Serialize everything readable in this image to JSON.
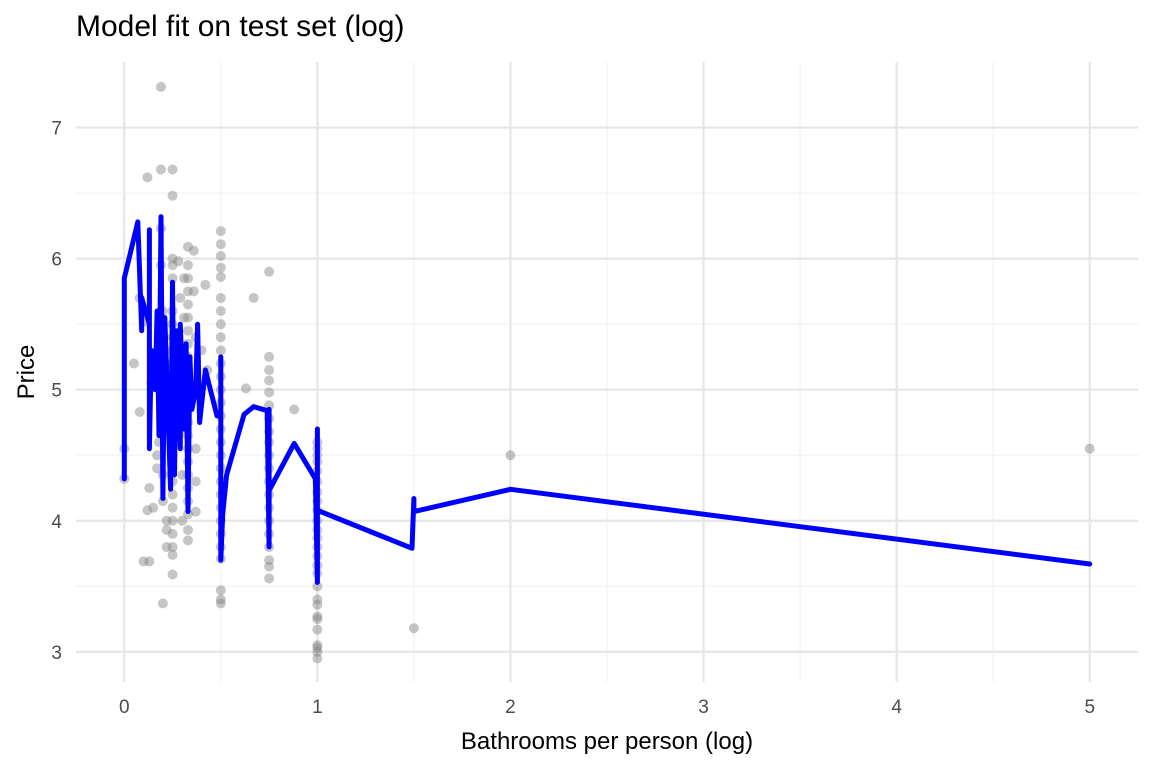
{
  "chart_data": {
    "type": "scatter",
    "title": "Model fit on test set (log)",
    "xlabel": "Bathrooms per person (log)",
    "ylabel": "Price",
    "xlim": [
      -0.25,
      5.25
    ],
    "ylim": [
      2.77,
      7.5
    ],
    "x_ticks": [
      0,
      1,
      2,
      3,
      4,
      5
    ],
    "y_ticks": [
      3,
      4,
      5,
      6,
      7
    ],
    "grid": true,
    "colors": {
      "points": "#808080",
      "fit_line": "#0000ff",
      "grid": "#e6e6e6"
    },
    "points": [
      [
        0,
        4.55
      ],
      [
        0,
        4.32
      ],
      [
        0.05,
        5.2
      ],
      [
        0.08,
        5.7
      ],
      [
        0.08,
        4.83
      ],
      [
        0.1,
        3.69
      ],
      [
        0.11,
        5.52
      ],
      [
        0.12,
        6.62
      ],
      [
        0.12,
        4.08
      ],
      [
        0.13,
        3.69
      ],
      [
        0.13,
        4.25
      ],
      [
        0.14,
        5.05
      ],
      [
        0.15,
        4.1
      ],
      [
        0.17,
        4.5
      ],
      [
        0.17,
        4.4
      ],
      [
        0.18,
        4.6
      ],
      [
        0.18,
        5.25
      ],
      [
        0.19,
        7.31
      ],
      [
        0.19,
        6.68
      ],
      [
        0.19,
        6.23
      ],
      [
        0.19,
        5.95
      ],
      [
        0.2,
        5.6
      ],
      [
        0.2,
        5.4
      ],
      [
        0.2,
        5.1
      ],
      [
        0.2,
        4.85
      ],
      [
        0.2,
        4.35
      ],
      [
        0.2,
        4.15
      ],
      [
        0.2,
        3.37
      ],
      [
        0.22,
        5.2
      ],
      [
        0.22,
        4.0
      ],
      [
        0.22,
        3.93
      ],
      [
        0.22,
        3.8
      ],
      [
        0.25,
        6.68
      ],
      [
        0.25,
        6.48
      ],
      [
        0.25,
        6.0
      ],
      [
        0.25,
        5.95
      ],
      [
        0.25,
        5.85
      ],
      [
        0.25,
        5.6
      ],
      [
        0.25,
        5.5
      ],
      [
        0.25,
        5.4
      ],
      [
        0.25,
        5.3
      ],
      [
        0.25,
        5.2
      ],
      [
        0.25,
        5.1
      ],
      [
        0.25,
        5.0
      ],
      [
        0.25,
        4.9
      ],
      [
        0.25,
        4.8
      ],
      [
        0.25,
        4.7
      ],
      [
        0.25,
        4.6
      ],
      [
        0.25,
        4.5
      ],
      [
        0.25,
        4.4
      ],
      [
        0.25,
        4.3
      ],
      [
        0.25,
        4.2
      ],
      [
        0.25,
        4.1
      ],
      [
        0.25,
        4.0
      ],
      [
        0.25,
        3.9
      ],
      [
        0.25,
        3.8
      ],
      [
        0.25,
        3.74
      ],
      [
        0.25,
        3.59
      ],
      [
        0.28,
        5.98
      ],
      [
        0.29,
        5.7
      ],
      [
        0.29,
        5.3
      ],
      [
        0.3,
        5.05
      ],
      [
        0.3,
        4.7
      ],
      [
        0.3,
        4.35
      ],
      [
        0.3,
        4.0
      ],
      [
        0.31,
        5.85
      ],
      [
        0.31,
        5.55
      ],
      [
        0.33,
        6.09
      ],
      [
        0.33,
        5.95
      ],
      [
        0.33,
        5.85
      ],
      [
        0.33,
        5.75
      ],
      [
        0.33,
        5.65
      ],
      [
        0.33,
        5.55
      ],
      [
        0.33,
        5.45
      ],
      [
        0.33,
        5.35
      ],
      [
        0.33,
        5.25
      ],
      [
        0.33,
        5.15
      ],
      [
        0.33,
        5.05
      ],
      [
        0.33,
        4.95
      ],
      [
        0.33,
        4.85
      ],
      [
        0.33,
        4.75
      ],
      [
        0.33,
        4.65
      ],
      [
        0.33,
        4.55
      ],
      [
        0.33,
        4.45
      ],
      [
        0.33,
        4.35
      ],
      [
        0.33,
        4.25
      ],
      [
        0.33,
        4.15
      ],
      [
        0.33,
        4.05
      ],
      [
        0.33,
        3.93
      ],
      [
        0.33,
        3.85
      ],
      [
        0.36,
        6.06
      ],
      [
        0.36,
        5.75
      ],
      [
        0.37,
        5.4
      ],
      [
        0.37,
        4.95
      ],
      [
        0.37,
        4.55
      ],
      [
        0.37,
        4.3
      ],
      [
        0.37,
        4.07
      ],
      [
        0.4,
        5.3
      ],
      [
        0.42,
        5.8
      ],
      [
        0.43,
        5.15
      ],
      [
        0.5,
        6.21
      ],
      [
        0.5,
        6.11
      ],
      [
        0.5,
        6.02
      ],
      [
        0.5,
        5.93
      ],
      [
        0.5,
        5.86
      ],
      [
        0.5,
        5.7
      ],
      [
        0.5,
        5.6
      ],
      [
        0.5,
        5.5
      ],
      [
        0.5,
        5.4
      ],
      [
        0.5,
        5.3
      ],
      [
        0.5,
        5.2
      ],
      [
        0.5,
        5.1
      ],
      [
        0.5,
        5.0
      ],
      [
        0.5,
        4.9
      ],
      [
        0.5,
        4.8
      ],
      [
        0.5,
        4.7
      ],
      [
        0.5,
        4.6
      ],
      [
        0.5,
        4.5
      ],
      [
        0.5,
        4.4
      ],
      [
        0.5,
        4.3
      ],
      [
        0.5,
        4.2
      ],
      [
        0.5,
        4.1
      ],
      [
        0.5,
        4.0
      ],
      [
        0.5,
        3.9
      ],
      [
        0.5,
        3.8
      ],
      [
        0.5,
        3.71
      ],
      [
        0.5,
        3.47
      ],
      [
        0.5,
        3.4
      ],
      [
        0.5,
        3.37
      ],
      [
        0.63,
        5.01
      ],
      [
        0.67,
        5.7
      ],
      [
        0.75,
        5.9
      ],
      [
        0.75,
        5.25
      ],
      [
        0.75,
        5.15
      ],
      [
        0.75,
        5.07
      ],
      [
        0.75,
        4.98
      ],
      [
        0.75,
        4.88
      ],
      [
        0.75,
        4.78
      ],
      [
        0.75,
        4.68
      ],
      [
        0.75,
        4.6
      ],
      [
        0.75,
        4.5
      ],
      [
        0.75,
        4.4
      ],
      [
        0.75,
        4.3
      ],
      [
        0.75,
        4.2
      ],
      [
        0.75,
        4.1
      ],
      [
        0.75,
        4.0
      ],
      [
        0.75,
        3.9
      ],
      [
        0.75,
        3.8
      ],
      [
        0.75,
        3.7
      ],
      [
        0.75,
        3.65
      ],
      [
        0.75,
        3.56
      ],
      [
        0.88,
        4.85
      ],
      [
        1,
        4.6
      ],
      [
        1,
        4.55
      ],
      [
        1,
        4.5
      ],
      [
        1,
        4.45
      ],
      [
        1,
        4.38
      ],
      [
        1,
        4.3
      ],
      [
        1,
        4.22
      ],
      [
        1,
        4.15
      ],
      [
        1,
        4.08
      ],
      [
        1,
        4.0
      ],
      [
        1,
        3.93
      ],
      [
        1,
        3.87
      ],
      [
        1,
        3.8
      ],
      [
        1,
        3.73
      ],
      [
        1,
        3.66
      ],
      [
        1,
        3.6
      ],
      [
        1,
        3.5
      ],
      [
        1,
        3.4
      ],
      [
        1,
        3.36
      ],
      [
        1,
        3.27
      ],
      [
        1,
        3.25
      ],
      [
        1,
        3.17
      ],
      [
        1,
        3.05
      ],
      [
        1,
        3.03
      ],
      [
        1,
        3.0
      ],
      [
        1,
        2.95
      ],
      [
        1.5,
        3.18
      ],
      [
        2,
        4.5
      ],
      [
        5,
        4.55
      ]
    ],
    "fit_line": [
      [
        0,
        4.32
      ],
      [
        0,
        5.85
      ],
      [
        0.07,
        6.28
      ],
      [
        0.09,
        5.45
      ],
      [
        0.09,
        5.7
      ],
      [
        0.13,
        5.5
      ],
      [
        0.13,
        6.22
      ],
      [
        0.13,
        4.55
      ],
      [
        0.14,
        5.3
      ],
      [
        0.16,
        5.0
      ],
      [
        0.17,
        5.6
      ],
      [
        0.18,
        4.65
      ],
      [
        0.19,
        6.32
      ],
      [
        0.2,
        4.17
      ],
      [
        0.21,
        5.55
      ],
      [
        0.22,
        5.1
      ],
      [
        0.24,
        4.24
      ],
      [
        0.25,
        5.82
      ],
      [
        0.26,
        4.35
      ],
      [
        0.27,
        5.45
      ],
      [
        0.29,
        4.55
      ],
      [
        0.29,
        5.5
      ],
      [
        0.31,
        4.7
      ],
      [
        0.32,
        5.35
      ],
      [
        0.33,
        4.07
      ],
      [
        0.34,
        5.25
      ],
      [
        0.35,
        4.85
      ],
      [
        0.37,
        5.0
      ],
      [
        0.38,
        5.5
      ],
      [
        0.39,
        4.75
      ],
      [
        0.42,
        5.15
      ],
      [
        0.48,
        4.8
      ],
      [
        0.5,
        4.82
      ],
      [
        0.5,
        5.25
      ],
      [
        0.5,
        3.7
      ],
      [
        0.51,
        4.05
      ],
      [
        0.53,
        4.35
      ],
      [
        0.62,
        4.81
      ],
      [
        0.67,
        4.87
      ],
      [
        0.74,
        4.84
      ],
      [
        0.75,
        3.8
      ],
      [
        0.75,
        4.85
      ],
      [
        0.75,
        4.23
      ],
      [
        0.88,
        4.59
      ],
      [
        0.99,
        4.32
      ],
      [
        1,
        3.53
      ],
      [
        1,
        4.7
      ],
      [
        1,
        4.08
      ],
      [
        1.49,
        3.79
      ],
      [
        1.5,
        4.17
      ],
      [
        1.5,
        4.07
      ],
      [
        2,
        4.24
      ],
      [
        5,
        3.67
      ]
    ]
  }
}
